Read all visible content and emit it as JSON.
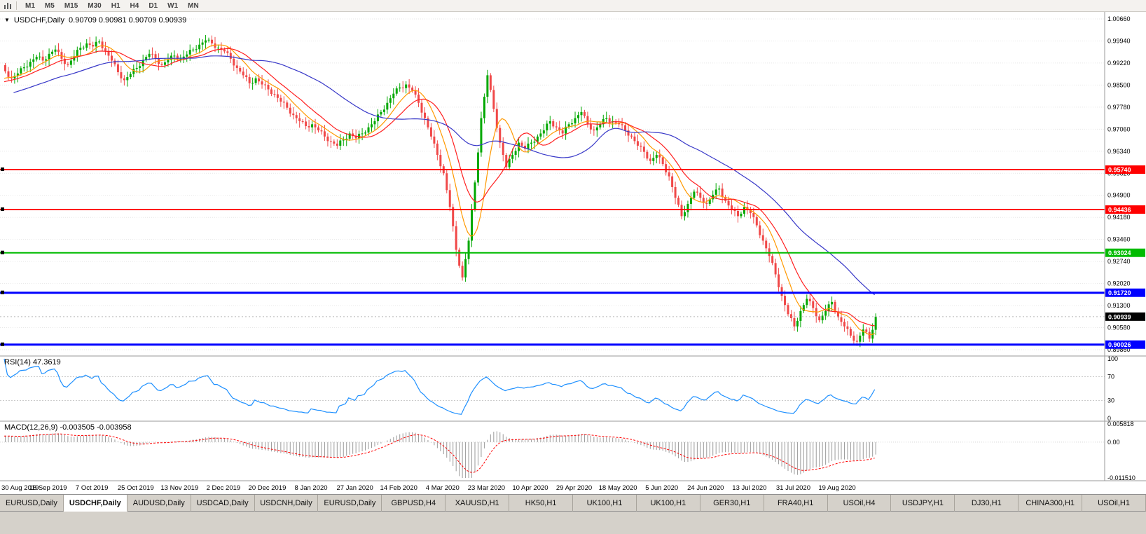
{
  "toolbar": {
    "timeframes": [
      "M1",
      "M5",
      "M15",
      "M30",
      "H1",
      "H4",
      "D1",
      "W1",
      "MN"
    ]
  },
  "chart": {
    "symbol": "USDCHF,Daily",
    "ohlc_text": "0.90709 0.90981 0.90709 0.90939",
    "current_price_label": "0.90939"
  },
  "rsi": {
    "label": "RSI(14) 47.3619",
    "axis": [
      "100",
      "70",
      "30",
      "0"
    ],
    "levels": [
      70,
      30
    ]
  },
  "macd": {
    "label": "MACD(12,26,9) -0.003505 -0.003958",
    "axis_top": "0.005818",
    "axis_zero": "0.00",
    "axis_bottom": "-0.011510"
  },
  "tabs": {
    "active_index": 1,
    "items": [
      "EURUSD,Daily",
      "USDCHF,Daily",
      "AUDUSD,Daily",
      "USDCAD,Daily",
      "USDCNH,Daily",
      "EURUSD,Daily",
      "GBPUSD,H4",
      "XAUUSD,H1",
      "HK50,H1",
      "UK100,H1",
      "UK100,H1",
      "GER30,H1",
      "FRA40,H1",
      "USOil,H4",
      "USDJPY,H1",
      "DJ30,H1",
      "CHINA300,H1",
      "USOil,H1"
    ]
  },
  "chart_data": {
    "type": "candlestick",
    "symbol": "USDCHF",
    "timeframe": "Daily",
    "title": "USDCHF,Daily 0.90709 0.90981 0.90709 0.90939",
    "current_price": 0.90939,
    "price_axis": [
      "1.00660",
      "0.99940",
      "0.99220",
      "0.98500",
      "0.97780",
      "0.97060",
      "0.96340",
      "0.95620",
      "0.94900",
      "0.94180",
      "0.93460",
      "0.92740",
      "0.92020",
      "0.91300",
      "0.90580",
      "0.89860"
    ],
    "ylim": [
      0.8975,
      1.01
    ],
    "date_ticks": [
      "30 Aug 2019",
      "18 Sep 2019",
      "7 Oct 2019",
      "25 Oct 2019",
      "13 Nov 2019",
      "2 Dec 2019",
      "20 Dec 2019",
      "8 Jan 2020",
      "27 Jan 2020",
      "14 Feb 2020",
      "4 Mar 2020",
      "23 Mar 2020",
      "10 Apr 2020",
      "29 Apr 2020",
      "18 May 2020",
      "5 Jun 2020",
      "24 Jun 2020",
      "13 Jul 2020",
      "31 Jul 2020",
      "19 Aug 2020"
    ],
    "closes": [
      0.9895,
      0.9872,
      0.9888,
      0.9908,
      0.9926,
      0.9942,
      0.993,
      0.9952,
      0.9966,
      0.9936,
      0.9916,
      0.9944,
      0.9972,
      0.9986,
      0.9976,
      0.9992,
      0.9962,
      0.993,
      0.9892,
      0.9866,
      0.9886,
      0.9906,
      0.9932,
      0.9952,
      0.9936,
      0.9916,
      0.9932,
      0.9946,
      0.9936,
      0.995,
      0.9966,
      0.9982,
      0.9996,
      0.9986,
      0.9972,
      0.996,
      0.9936,
      0.9906,
      0.9882,
      0.9856,
      0.9872,
      0.9852,
      0.9836,
      0.982,
      0.9796,
      0.9776,
      0.9752,
      0.9732,
      0.9716,
      0.9722,
      0.9702,
      0.9682,
      0.9666,
      0.9652,
      0.9672,
      0.9692,
      0.9676,
      0.9692,
      0.9712,
      0.9732,
      0.9762,
      0.9792,
      0.9822,
      0.9842,
      0.9852,
      0.9832,
      0.9792,
      0.9742,
      0.9682,
      0.9622,
      0.9562,
      0.9452,
      0.9312,
      0.9222,
      0.9342,
      0.9532,
      0.9742,
      0.9882,
      0.9772,
      0.9662,
      0.9582,
      0.9622,
      0.9662,
      0.9642,
      0.9662,
      0.9682,
      0.9702,
      0.9732,
      0.9712,
      0.9692,
      0.9722,
      0.9742,
      0.9762,
      0.9722,
      0.9702,
      0.9722,
      0.9742,
      0.9732,
      0.9722,
      0.9702,
      0.9682,
      0.9652,
      0.9632,
      0.9602,
      0.9622,
      0.9592,
      0.9552,
      0.9482,
      0.9422,
      0.9462,
      0.9502,
      0.9482,
      0.9462,
      0.9492,
      0.9512,
      0.9472,
      0.9442,
      0.9422,
      0.9452,
      0.9432,
      0.9392,
      0.9342,
      0.9292,
      0.9232,
      0.9162,
      0.9102,
      0.9062,
      0.9112,
      0.9152,
      0.9122,
      0.9082,
      0.9112,
      0.9142,
      0.9092,
      0.9062,
      0.9032,
      0.9012,
      0.9052,
      0.9022,
      0.9094
    ],
    "hlines": [
      {
        "price": 0.9574,
        "label": "0.95740",
        "color": "#FF0000",
        "width": 2
      },
      {
        "price": 0.94436,
        "label": "0.94436",
        "color": "#FF0000",
        "width": 2
      },
      {
        "price": 0.93024,
        "label": "0.93024",
        "color": "#00BB00",
        "width": 2
      },
      {
        "price": 0.9172,
        "label": "0.91720",
        "color": "#0000FF",
        "width": 3
      },
      {
        "price": 0.90026,
        "label": "0.90026",
        "color": "#0000FF",
        "width": 3
      }
    ],
    "ma": [
      {
        "name": "ma-fast-orange",
        "color": "#FF9900",
        "window": 9
      },
      {
        "name": "ma-mid-red",
        "color": "#FF2020",
        "window": 16
      },
      {
        "name": "ma-slow-blue",
        "color": "#3838C8",
        "window": 44
      }
    ],
    "indicators": [
      {
        "name": "RSI",
        "period": 14,
        "value": 47.3619
      },
      {
        "name": "MACD",
        "fast": 12,
        "slow": 26,
        "signal": 9,
        "value": -0.003505,
        "signal_value": -0.003958
      }
    ],
    "colors": {
      "bull": "#00A800",
      "bear": "#F04848",
      "rsi": "#1E90FF",
      "macd_hist": "#9A9A9A",
      "macd_signal": "#FF0000",
      "grid": "#E7E7E7",
      "separator": "#9A9A9A",
      "current_label_bg": "#000000"
    }
  }
}
